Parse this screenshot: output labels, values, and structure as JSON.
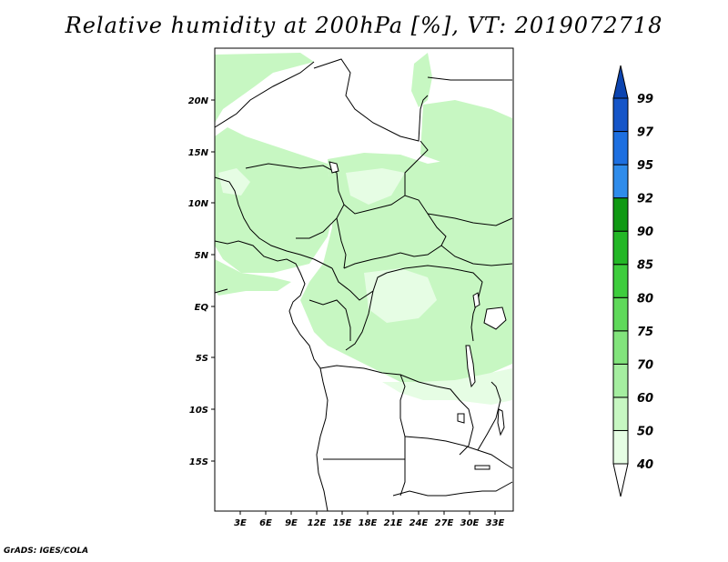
{
  "title": "Relative humidity at 200hPa [%], VT: 2019072718",
  "credit": "GrADS: IGES/COLA",
  "lat_labels": [
    "20N",
    "15N",
    "10N",
    "5N",
    "EQ",
    "5S",
    "10S",
    "15S"
  ],
  "lon_labels": [
    "3E",
    "6E",
    "9E",
    "12E",
    "15E",
    "18E",
    "21E",
    "24E",
    "27E",
    "30E",
    "33E"
  ],
  "colorbar": {
    "levels": [
      "40",
      "50",
      "60",
      "70",
      "75",
      "80",
      "85",
      "90",
      "92",
      "95",
      "97",
      "99"
    ],
    "colors": [
      "#ffffff",
      "#e6fde4",
      "#c7f7c2",
      "#a5eea0",
      "#82e47c",
      "#5fd95a",
      "#3ecd3d",
      "#23b726",
      "#0f9913",
      "#2f8ceb",
      "#1d6fe0",
      "#1555c8",
      "#0c44b0"
    ]
  },
  "map": {
    "land_color": "#ffffff",
    "border_color": "#000000"
  }
}
